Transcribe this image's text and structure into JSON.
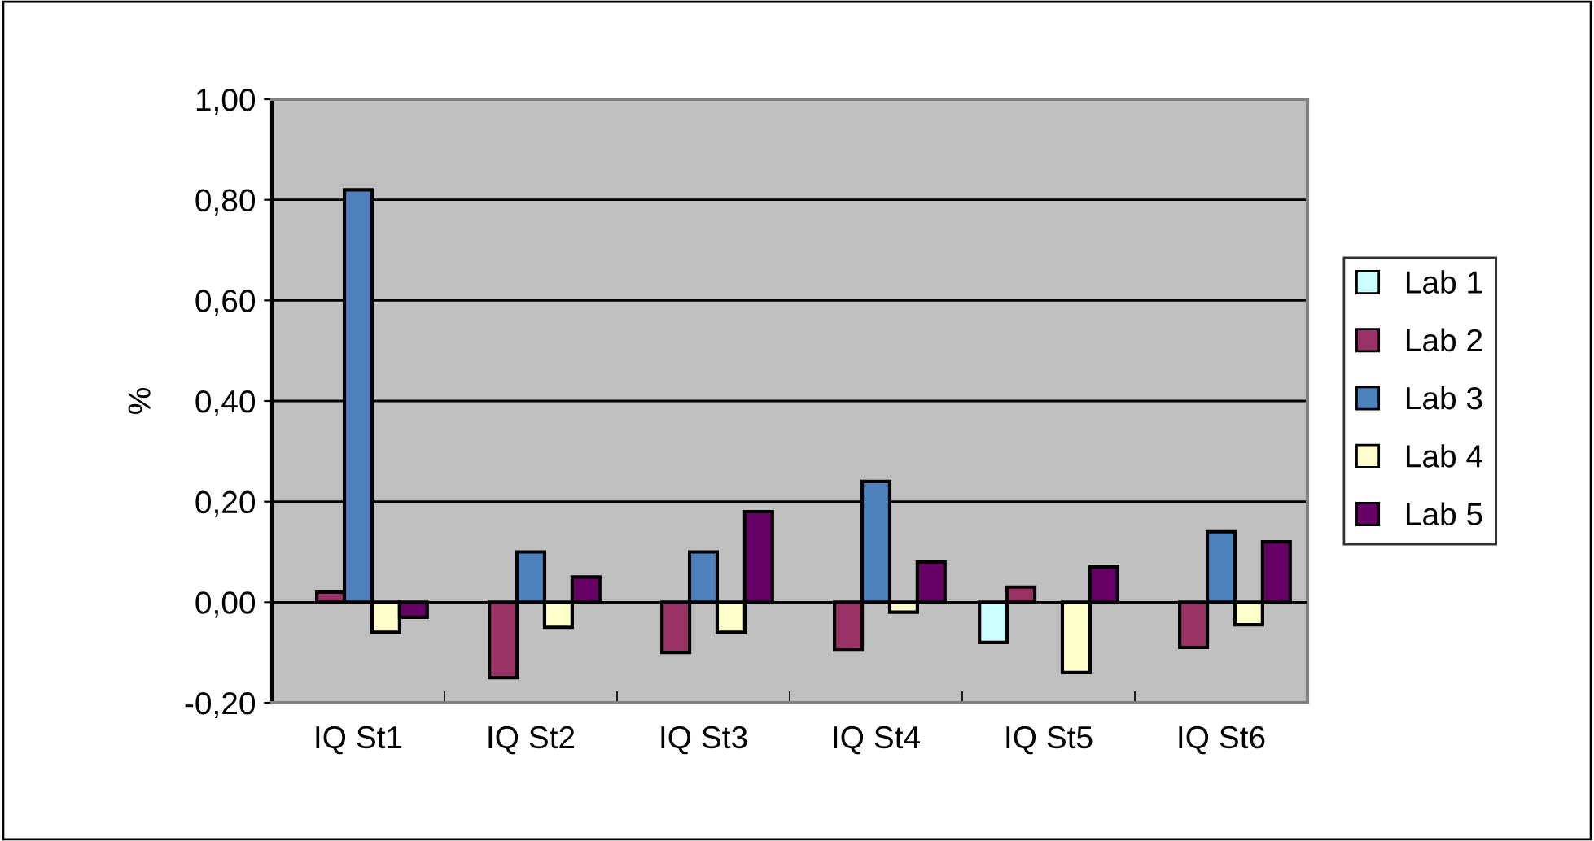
{
  "chart_data": {
    "type": "bar",
    "ylabel": "%",
    "categories": [
      "IQ St1",
      "IQ St2",
      "IQ St3",
      "IQ St4",
      "IQ St5",
      "IQ St6"
    ],
    "series": [
      {
        "name": "Lab 1",
        "color": "#ccffff",
        "values": [
          null,
          null,
          null,
          null,
          -0.08,
          null
        ]
      },
      {
        "name": "Lab 2",
        "color": "#993366",
        "values": [
          0.02,
          -0.15,
          -0.1,
          -0.095,
          0.03,
          -0.09
        ]
      },
      {
        "name": "Lab 3",
        "color": "#4f81bd",
        "values": [
          0.82,
          0.1,
          0.1,
          0.24,
          null,
          0.14
        ]
      },
      {
        "name": "Lab 4",
        "color": "#ffffcc",
        "values": [
          -0.06,
          -0.05,
          -0.06,
          -0.02,
          -0.14,
          -0.045
        ]
      },
      {
        "name": "Lab 5",
        "color": "#660066",
        "values": [
          -0.03,
          0.05,
          0.18,
          0.08,
          0.07,
          0.12
        ]
      }
    ],
    "ylim": [
      -0.2,
      1.0
    ],
    "yticks": [
      {
        "value": -0.2,
        "label": "-0,20"
      },
      {
        "value": 0,
        "label": "0,00"
      },
      {
        "value": 0.2,
        "label": "0,20"
      },
      {
        "value": 0.4,
        "label": "0,40"
      },
      {
        "value": 0.6,
        "label": "0,60"
      },
      {
        "value": 0.8,
        "label": "0,80"
      },
      {
        "value": 1.0,
        "label": "1,00"
      }
    ],
    "grid": "y",
    "legend": "right"
  }
}
